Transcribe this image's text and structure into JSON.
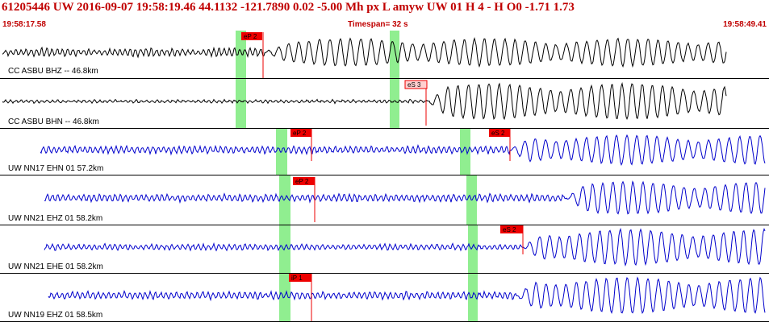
{
  "header": {
    "event_line": "61205446 UW 2016-09-07 19:58:19.46   44.1132 -121.7890   0.02 -5.00 Mh  px  L amyw     UW 01  H   4  -  H O0   -1.71  1.73",
    "time_start": "19:58:17.58",
    "timespan": "Timespan=  32 s",
    "time_end": "19:58:49.41"
  },
  "colors": {
    "header_text": "#c00000",
    "trace_black": "#000000",
    "trace_blue": "#0000cc",
    "pick_red": "#ee0000",
    "pick_light": "#ffd0d0",
    "window_green": "#90ee90",
    "panel_divider": "#000000"
  },
  "panels": [
    {
      "label": "CC ASBU BHZ -- 46.8km",
      "color": "black",
      "picks": [
        {
          "label": "eP 2",
          "style": "red"
        }
      ]
    },
    {
      "label": "CC ASBU BHN -- 46.8km",
      "color": "black",
      "picks": [
        {
          "label": "eS 3",
          "style": "light"
        }
      ]
    },
    {
      "label": "UW NN17 EHN 01 57.2km",
      "color": "blue",
      "picks": [
        {
          "label": "eP 2",
          "style": "red"
        },
        {
          "label": "eS 2",
          "style": "red"
        }
      ]
    },
    {
      "label": "UW NN21 EHZ 01 58.2km",
      "color": "blue",
      "picks": [
        {
          "label": "eP 2",
          "style": "red"
        }
      ]
    },
    {
      "label": "UW NN21 EHE 01 58.2km",
      "color": "blue",
      "picks": [
        {
          "label": "eS 2",
          "style": "red"
        }
      ]
    },
    {
      "label": "UW NN19 EHZ 01 58.5km",
      "color": "blue",
      "picks": [
        {
          "label": "iP 1",
          "style": "red"
        }
      ]
    }
  ]
}
